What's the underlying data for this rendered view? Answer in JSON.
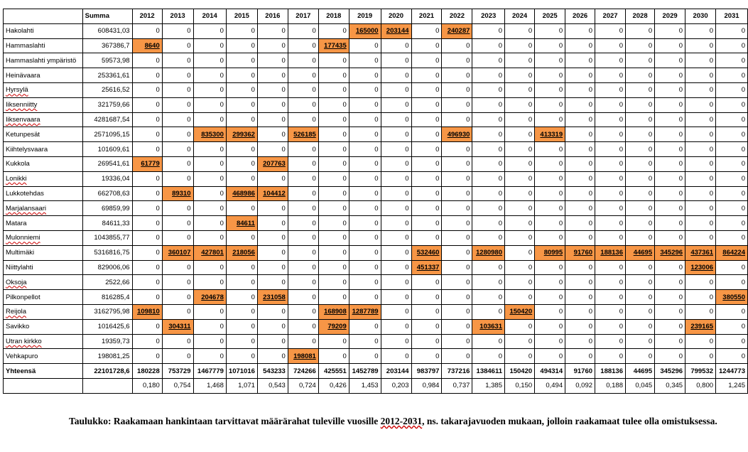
{
  "table": {
    "summa_label": "Summa",
    "years": [
      "2012",
      "2013",
      "2014",
      "2015",
      "2016",
      "2017",
      "2018",
      "2019",
      "2020",
      "2021",
      "2022",
      "2023",
      "2024",
      "2025",
      "2026",
      "2027",
      "2028",
      "2029",
      "2030",
      "2031"
    ],
    "rows": [
      {
        "name": "Hakolahti",
        "spell": false,
        "summa": "608431,03",
        "values": [
          "0",
          "0",
          "0",
          "0",
          "0",
          "0",
          "0",
          "165000",
          "203144",
          "0",
          "240287",
          "0",
          "0",
          "0",
          "0",
          "0",
          "0",
          "0",
          "0",
          "0"
        ],
        "highlight": [
          7,
          8,
          10
        ]
      },
      {
        "name": "Hammaslahti",
        "spell": false,
        "summa": "367386,7",
        "values": [
          "8640",
          "0",
          "0",
          "0",
          "0",
          "0",
          "177435",
          "0",
          "0",
          "0",
          "0",
          "0",
          "0",
          "0",
          "0",
          "0",
          "0",
          "0",
          "0",
          "0"
        ],
        "highlight": [
          0,
          6
        ]
      },
      {
        "name": "Hammaslahti ympäristö",
        "spell": false,
        "summa": "59573,98",
        "values": [
          "0",
          "0",
          "0",
          "0",
          "0",
          "0",
          "0",
          "0",
          "0",
          "0",
          "0",
          "0",
          "0",
          "0",
          "0",
          "0",
          "0",
          "0",
          "0",
          "0"
        ],
        "highlight": []
      },
      {
        "name": "Heinävaara",
        "spell": false,
        "summa": "253361,61",
        "values": [
          "0",
          "0",
          "0",
          "0",
          "0",
          "0",
          "0",
          "0",
          "0",
          "0",
          "0",
          "0",
          "0",
          "0",
          "0",
          "0",
          "0",
          "0",
          "0",
          "0"
        ],
        "highlight": []
      },
      {
        "name": "Hyrsylä",
        "spell": true,
        "summa": "25616,52",
        "values": [
          "0",
          "0",
          "0",
          "0",
          "0",
          "0",
          "0",
          "0",
          "0",
          "0",
          "0",
          "0",
          "0",
          "0",
          "0",
          "0",
          "0",
          "0",
          "0",
          "0"
        ],
        "highlight": []
      },
      {
        "name": "Iiksenniitty",
        "spell": true,
        "summa": "321759,66",
        "values": [
          "0",
          "0",
          "0",
          "0",
          "0",
          "0",
          "0",
          "0",
          "0",
          "0",
          "0",
          "0",
          "0",
          "0",
          "0",
          "0",
          "0",
          "0",
          "0",
          "0"
        ],
        "highlight": []
      },
      {
        "name": "Iiksenvaara",
        "spell": true,
        "summa": "4281687,54",
        "values": [
          "0",
          "0",
          "0",
          "0",
          "0",
          "0",
          "0",
          "0",
          "0",
          "0",
          "0",
          "0",
          "0",
          "0",
          "0",
          "0",
          "0",
          "0",
          "0",
          "0"
        ],
        "highlight": []
      },
      {
        "name": "Ketunpesät",
        "spell": false,
        "summa": "2571095,15",
        "values": [
          "0",
          "0",
          "835300",
          "299362",
          "0",
          "526185",
          "0",
          "0",
          "0",
          "0",
          "496930",
          "0",
          "0",
          "413319",
          "0",
          "0",
          "0",
          "0",
          "0",
          "0"
        ],
        "highlight": [
          2,
          3,
          5,
          10,
          13
        ]
      },
      {
        "name": "Kiihtelysvaara",
        "spell": false,
        "summa": "101609,61",
        "values": [
          "0",
          "0",
          "0",
          "0",
          "0",
          "0",
          "0",
          "0",
          "0",
          "0",
          "0",
          "0",
          "0",
          "0",
          "0",
          "0",
          "0",
          "0",
          "0",
          "0"
        ],
        "highlight": []
      },
      {
        "name": "Kukkola",
        "spell": false,
        "summa": "269541,61",
        "values": [
          "61779",
          "0",
          "0",
          "0",
          "207763",
          "0",
          "0",
          "0",
          "0",
          "0",
          "0",
          "0",
          "0",
          "0",
          "0",
          "0",
          "0",
          "0",
          "0",
          "0"
        ],
        "highlight": [
          0,
          4
        ]
      },
      {
        "name": "Lonikki",
        "spell": true,
        "summa": "19336,04",
        "values": [
          "0",
          "0",
          "0",
          "0",
          "0",
          "0",
          "0",
          "0",
          "0",
          "0",
          "0",
          "0",
          "0",
          "0",
          "0",
          "0",
          "0",
          "0",
          "0",
          "0"
        ],
        "highlight": []
      },
      {
        "name": "Lukkotehdas",
        "spell": false,
        "summa": "662708,63",
        "values": [
          "0",
          "89310",
          "0",
          "468986",
          "104412",
          "0",
          "0",
          "0",
          "0",
          "0",
          "0",
          "0",
          "0",
          "0",
          "0",
          "0",
          "0",
          "0",
          "0",
          "0"
        ],
        "highlight": [
          1,
          3,
          4
        ]
      },
      {
        "name": "Marjalansaari",
        "spell": true,
        "summa": "69859,99",
        "values": [
          "0",
          "0",
          "0",
          "0",
          "0",
          "0",
          "0",
          "0",
          "0",
          "0",
          "0",
          "0",
          "0",
          "0",
          "0",
          "0",
          "0",
          "0",
          "0",
          "0"
        ],
        "highlight": []
      },
      {
        "name": "Matara",
        "spell": false,
        "summa": "84611,33",
        "values": [
          "0",
          "0",
          "0",
          "84611",
          "0",
          "0",
          "0",
          "0",
          "0",
          "0",
          "0",
          "0",
          "0",
          "0",
          "0",
          "0",
          "0",
          "0",
          "0",
          "0"
        ],
        "highlight": [
          3
        ]
      },
      {
        "name": "Mulonniemi",
        "spell": true,
        "summa": "1043855,77",
        "values": [
          "0",
          "0",
          "0",
          "0",
          "0",
          "0",
          "0",
          "0",
          "0",
          "0",
          "0",
          "0",
          "0",
          "0",
          "0",
          "0",
          "0",
          "0",
          "0",
          "0"
        ],
        "highlight": []
      },
      {
        "name": "Multimäki",
        "spell": false,
        "summa": "5316816,75",
        "values": [
          "0",
          "360107",
          "427801",
          "218056",
          "0",
          "0",
          "0",
          "0",
          "0",
          "532460",
          "0",
          "1280980",
          "0",
          "80995",
          "91760",
          "188136",
          "44695",
          "345296",
          "437361",
          "864224"
        ],
        "highlight": [
          1,
          2,
          3,
          9,
          11,
          13,
          14,
          15,
          16,
          17,
          18,
          19
        ]
      },
      {
        "name": "Niittylahti",
        "spell": false,
        "summa": "829006,06",
        "values": [
          "0",
          "0",
          "0",
          "0",
          "0",
          "0",
          "0",
          "0",
          "0",
          "451337",
          "0",
          "0",
          "0",
          "0",
          "0",
          "0",
          "0",
          "0",
          "123006",
          "0"
        ],
        "highlight": [
          9,
          18
        ]
      },
      {
        "name": "Oksoja",
        "spell": true,
        "summa": "2522,66",
        "values": [
          "0",
          "0",
          "0",
          "0",
          "0",
          "0",
          "0",
          "0",
          "0",
          "0",
          "0",
          "0",
          "0",
          "0",
          "0",
          "0",
          "0",
          "0",
          "0",
          "0"
        ],
        "highlight": []
      },
      {
        "name": "Pilkonpellot",
        "spell": false,
        "summa": "816285,4",
        "values": [
          "0",
          "0",
          "204678",
          "0",
          "231058",
          "0",
          "0",
          "0",
          "0",
          "0",
          "0",
          "0",
          "0",
          "0",
          "0",
          "0",
          "0",
          "0",
          "0",
          "380550"
        ],
        "highlight": [
          2,
          4,
          19
        ]
      },
      {
        "name": "Reijola",
        "spell": true,
        "summa": "3162795,98",
        "values": [
          "109810",
          "0",
          "0",
          "0",
          "0",
          "0",
          "168908",
          "1287789",
          "0",
          "0",
          "0",
          "0",
          "150420",
          "0",
          "0",
          "0",
          "0",
          "0",
          "0",
          "0"
        ],
        "highlight": [
          0,
          6,
          7,
          12
        ]
      },
      {
        "name": "Savikko",
        "spell": false,
        "summa": "1016425,6",
        "values": [
          "0",
          "304311",
          "0",
          "0",
          "0",
          "0",
          "79209",
          "0",
          "0",
          "0",
          "0",
          "103631",
          "0",
          "0",
          "0",
          "0",
          "0",
          "0",
          "239165",
          "0"
        ],
        "highlight": [
          1,
          6,
          11,
          18
        ]
      },
      {
        "name": "Utran kirkko",
        "spell": true,
        "summa": "19359,73",
        "values": [
          "0",
          "0",
          "0",
          "0",
          "0",
          "0",
          "0",
          "0",
          "0",
          "0",
          "0",
          "0",
          "0",
          "0",
          "0",
          "0",
          "0",
          "0",
          "0",
          "0"
        ],
        "highlight": []
      },
      {
        "name": "Vehkapuro",
        "spell": false,
        "summa": "198081,25",
        "values": [
          "0",
          "0",
          "0",
          "0",
          "0",
          "198081",
          "0",
          "0",
          "0",
          "0",
          "0",
          "0",
          "0",
          "0",
          "0",
          "0",
          "0",
          "0",
          "0",
          "0"
        ],
        "highlight": [
          5
        ]
      }
    ],
    "total": {
      "name": "Yhteensä",
      "summa": "22101728,6",
      "values": [
        "180228",
        "753729",
        "1467779",
        "1071016",
        "543233",
        "724266",
        "425551",
        "1452789",
        "203144",
        "983797",
        "737216",
        "1384611",
        "150420",
        "494314",
        "91760",
        "188136",
        "44695",
        "345296",
        "799532",
        "1244773"
      ]
    },
    "ratio_row": [
      "0,180",
      "0,754",
      "1,468",
      "1,071",
      "0,543",
      "0,724",
      "0,426",
      "1,453",
      "0,203",
      "0,984",
      "0,737",
      "1,385",
      "0,150",
      "0,494",
      "0,092",
      "0,188",
      "0,045",
      "0,345",
      "0,800",
      "1,245"
    ],
    "colors": {
      "highlight": "#f79646",
      "border": "#000000"
    }
  },
  "caption": {
    "before": "Taulukko: Raakamaan hankintaan tarvittavat määrärahat tuleville vuosille ",
    "years": "2012-2031",
    "after": ", ns. takarajavuoden mukaan, jolloin raakamaat tulee olla omistuksessa."
  }
}
